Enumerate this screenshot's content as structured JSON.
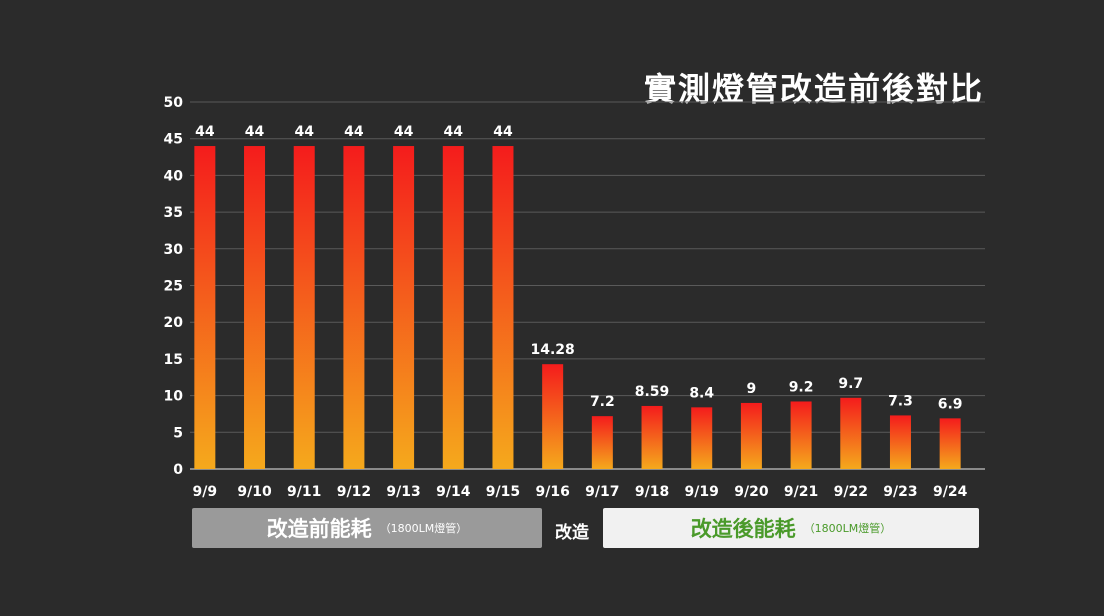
{
  "chart_data": {
    "type": "bar",
    "title": "實測燈管改造前後對比",
    "categories": [
      "9/9",
      "9/10",
      "9/11",
      "9/12",
      "9/13",
      "9/14",
      "9/15",
      "9/16",
      "9/17",
      "9/18",
      "9/19",
      "9/20",
      "9/21",
      "9/22",
      "9/23",
      "9/24"
    ],
    "values": [
      44,
      44,
      44,
      44,
      44,
      44,
      44,
      14.28,
      7.2,
      8.59,
      8.4,
      9,
      9.2,
      9.7,
      7.3,
      6.9
    ],
    "data_labels": [
      "44",
      "44",
      "44",
      "44",
      "44",
      "44",
      "44",
      "14.28",
      "7.2",
      "8.59",
      "8.4",
      "9",
      "9.2",
      "9.7",
      "7.3",
      "6.9"
    ],
    "ylim": [
      0,
      50
    ],
    "yticks": [
      "0",
      "5",
      "10",
      "15",
      "20",
      "25",
      "30",
      "35",
      "40",
      "45",
      "50"
    ],
    "grid": true,
    "xlabel": "",
    "ylabel": "",
    "colors": {
      "bar_top": "#f41c1c",
      "bar_bottom": "#f5a91c",
      "grid": "#5a5a5a",
      "text": "#ffffff"
    }
  },
  "legend": {
    "before_label": "改造前能耗",
    "before_sub": "（1800LM燈管）",
    "middle_label": "改造",
    "after_label": "改造後能耗",
    "after_sub": "（1800LM燈管）"
  }
}
